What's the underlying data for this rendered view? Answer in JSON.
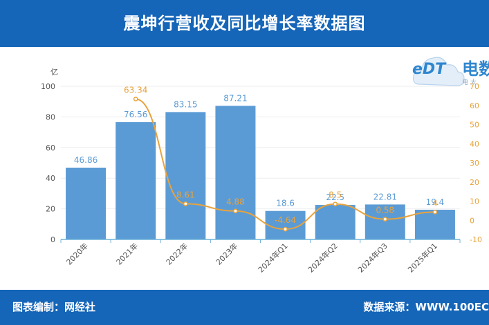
{
  "header": {
    "title": "震坤行营收及同比增长率数据图"
  },
  "footer": {
    "editor": "图表编制：网经社",
    "source": "数据来源：WWW.100EC"
  },
  "logo": {
    "brand": "eDT",
    "chinese": "电数",
    "sub": "电 大"
  },
  "colors": {
    "header_bg": "#1565b8",
    "bar": "#5b9bd5",
    "line": "#e8a33d",
    "bar_label": "#5b9bd5",
    "line_label": "#e8a33d"
  },
  "chart_data": {
    "type": "bar",
    "categories": [
      "2020年",
      "2021年",
      "2022年",
      "2023年",
      "2024年Q1",
      "2024年Q2",
      "2024年Q3",
      "2025年Q1"
    ],
    "y_unit": "亿",
    "y_ticks": [
      0,
      20,
      40,
      60,
      80,
      100
    ],
    "ylim": [
      0,
      100
    ],
    "y2_ticks": [
      -10,
      0,
      10,
      20,
      30,
      40,
      50,
      60,
      70
    ],
    "y2lim": [
      -10,
      70
    ],
    "series": [
      {
        "kind": "bar",
        "values": [
          46.86,
          76.56,
          83.15,
          87.21,
          18.6,
          22.5,
          22.81,
          19.4
        ]
      },
      {
        "kind": "line",
        "values": [
          null,
          63.34,
          8.61,
          4.88,
          -4.64,
          8.5,
          0.58,
          4.3
        ],
        "labels": [
          "",
          "63.34",
          "8.61",
          "4.88",
          "-4.64",
          "8.5",
          "0.58",
          "4"
        ]
      }
    ],
    "bar_labels": [
      "46.86",
      "76.56",
      "83.15",
      "87.21",
      "18.6",
      "22.5",
      "22.81",
      "19.4"
    ],
    "grid": true
  }
}
